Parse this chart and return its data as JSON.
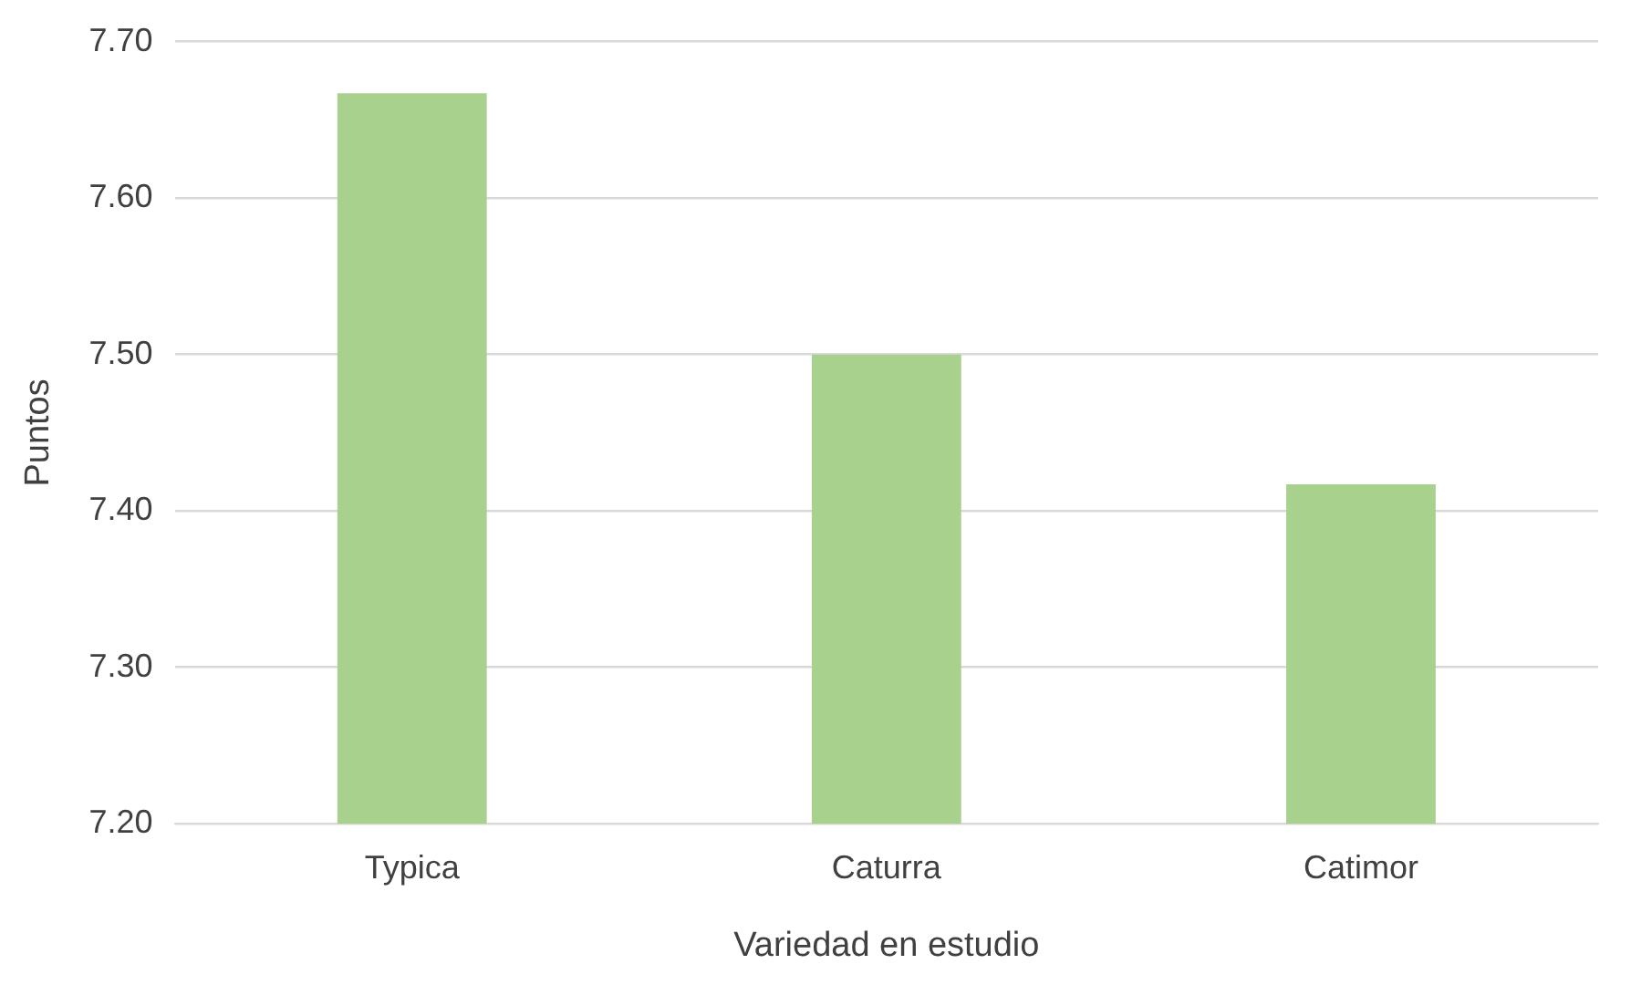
{
  "chart_data": {
    "type": "bar",
    "xlabel": "Variedad en estudio",
    "ylabel": "Puntos",
    "categories": [
      "Typica",
      "Caturra",
      "Catimor"
    ],
    "values": [
      7.667,
      7.5,
      7.417
    ],
    "color": "#a9d18e",
    "ylim": [
      7.2,
      7.7
    ],
    "yticks": [
      {
        "value": 7.2,
        "label": "7.20"
      },
      {
        "value": 7.3,
        "label": "7.30"
      },
      {
        "value": 7.4,
        "label": "7.40"
      },
      {
        "value": 7.5,
        "label": "7.50"
      },
      {
        "value": 7.6,
        "label": "7.60"
      },
      {
        "value": 7.7,
        "label": "7.70"
      }
    ],
    "grid": "y",
    "legend": false
  }
}
